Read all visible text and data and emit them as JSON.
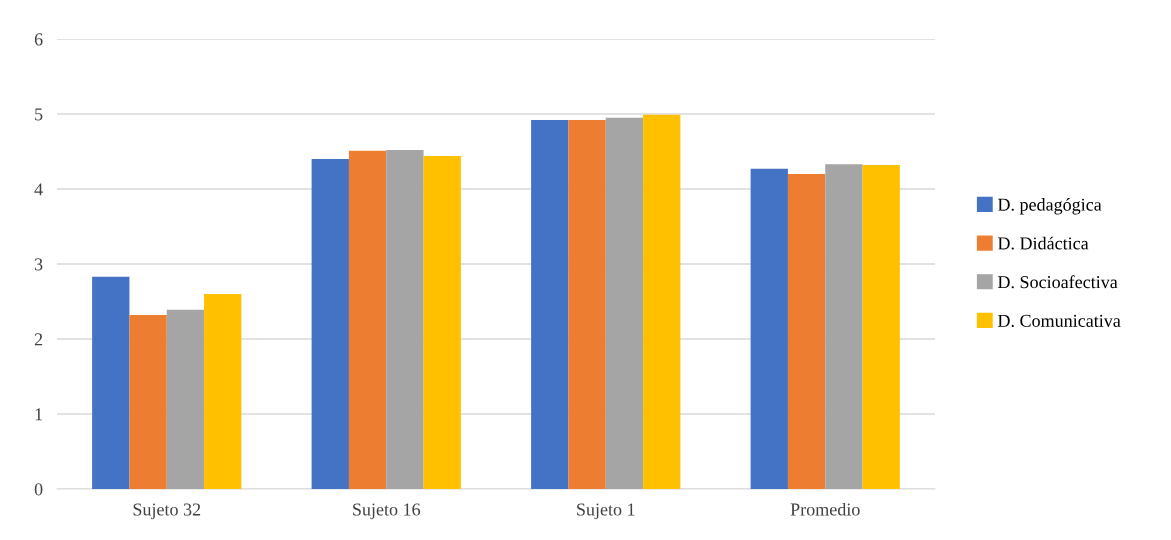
{
  "chart_data": {
    "type": "bar",
    "categories": [
      "Sujeto 32",
      "Sujeto 16",
      "Sujeto 1",
      "Promedio"
    ],
    "series": [
      {
        "name": "D. pedagógica",
        "color": "#4472c4",
        "values": [
          2.83,
          4.4,
          4.92,
          4.27
        ]
      },
      {
        "name": "D. Didáctica",
        "color": "#ed7d31",
        "values": [
          2.32,
          4.51,
          4.92,
          4.2
        ]
      },
      {
        "name": "D. Socioafectiva",
        "color": "#a5a5a5",
        "values": [
          2.39,
          4.52,
          4.95,
          4.33
        ]
      },
      {
        "name": "D. Comunicativa",
        "color": "#ffc000",
        "values": [
          2.6,
          4.44,
          4.99,
          4.32
        ]
      }
    ],
    "ylim": [
      0,
      6
    ],
    "yticks": [
      0,
      1,
      2,
      3,
      4,
      5,
      6
    ],
    "grid": "y",
    "legend": "right"
  }
}
